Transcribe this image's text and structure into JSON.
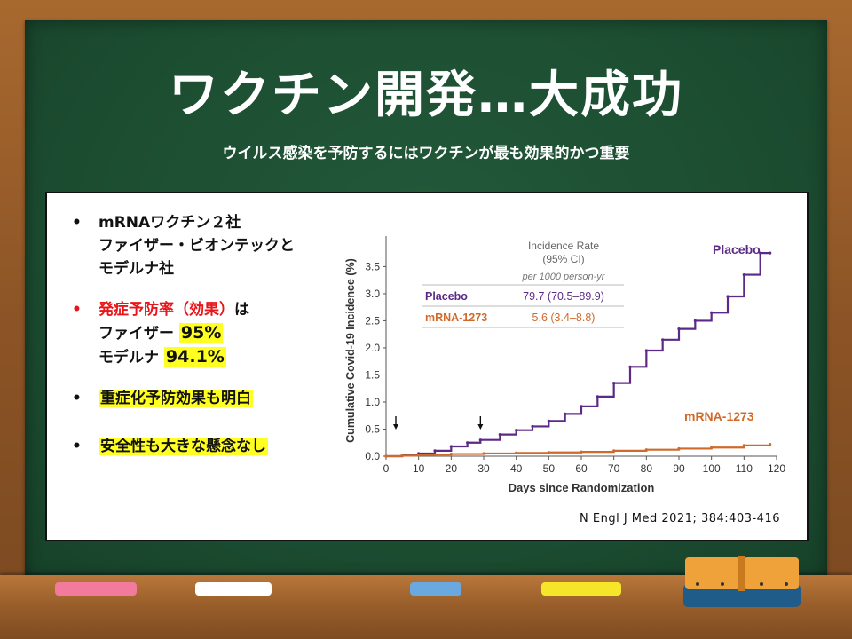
{
  "slide": {
    "title": "ワクチン開発…大成功",
    "subtitle": "ウイルス感染を予防するにはワクチンが最も効果的かつ重要"
  },
  "bullets": {
    "b1_line1": "mRNAワクチン２社",
    "b1_line2": "ファイザー・ビオンテックと",
    "b1_line3": "モデルナ社",
    "b2_line1": "発症予防率（効果）",
    "b2_line1_suffix": "は",
    "b2_line2_prefix": "ファイザー ",
    "b2_line2_value": "95%",
    "b2_line3_prefix": "モデルナ ",
    "b2_line3_value": "94.1%",
    "b3": "重症化予防効果も明白",
    "b4": "安全性も大きな懸念なし",
    "marker": "•"
  },
  "citation": "N Engl J Med 2021; 384:403-416",
  "colors": {
    "placebo": "#5b2a86",
    "mrna": "#d06a2a",
    "board": "#1c4d31",
    "highlight": "#ffff22",
    "red": "#e8161b"
  },
  "chart_data": {
    "type": "line",
    "xlabel": "Days since Randomization",
    "ylabel": "Cumulative Covid-19 Incidence (%)",
    "xlim": [
      0,
      120
    ],
    "ylim": [
      0,
      3.9
    ],
    "x_ticks": [
      "0",
      "10",
      "20",
      "30",
      "40",
      "50",
      "60",
      "70",
      "80",
      "90",
      "100",
      "110",
      "120"
    ],
    "y_ticks": [
      "0.0",
      "0.5",
      "1.0",
      "1.5",
      "2.0",
      "2.5",
      "3.0",
      "3.5"
    ],
    "table": {
      "header_line1": "Incidence Rate",
      "header_line2": "(95% CI)",
      "header_line3": "per 1000 person-yr",
      "rows": [
        {
          "name": "Placebo",
          "value": "79.7 (70.5–89.9)"
        },
        {
          "name": "mRNA-1273",
          "value": "5.6 (3.4–8.8)"
        }
      ]
    },
    "arrows_at_days": [
      3,
      29
    ],
    "series": [
      {
        "name": "Placebo",
        "x": [
          0,
          5,
          10,
          15,
          20,
          25,
          29,
          35,
          40,
          45,
          50,
          55,
          60,
          65,
          70,
          75,
          80,
          85,
          90,
          95,
          100,
          105,
          110,
          115,
          118
        ],
        "values": [
          0,
          0.02,
          0.05,
          0.1,
          0.18,
          0.25,
          0.3,
          0.4,
          0.48,
          0.55,
          0.65,
          0.78,
          0.92,
          1.1,
          1.35,
          1.65,
          1.95,
          2.15,
          2.35,
          2.5,
          2.65,
          2.95,
          3.35,
          3.75,
          3.75
        ]
      },
      {
        "name": "mRNA-1273",
        "x": [
          0,
          5,
          10,
          15,
          20,
          30,
          40,
          50,
          60,
          70,
          80,
          90,
          100,
          110,
          118
        ],
        "values": [
          0,
          0.01,
          0.02,
          0.03,
          0.04,
          0.05,
          0.06,
          0.07,
          0.08,
          0.1,
          0.12,
          0.14,
          0.16,
          0.2,
          0.22
        ]
      }
    ]
  }
}
